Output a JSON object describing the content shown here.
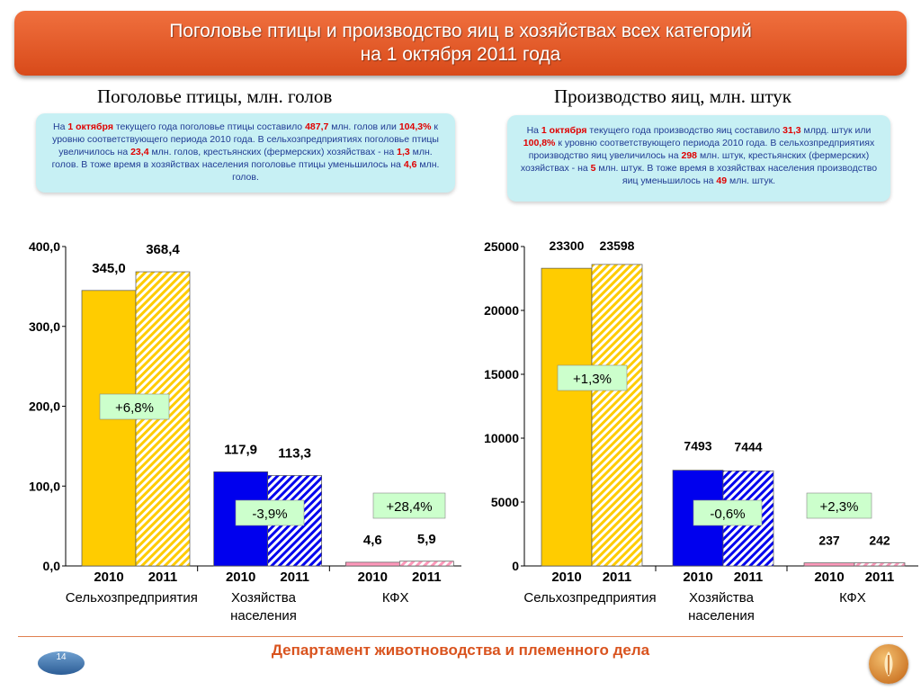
{
  "header": {
    "line1": "Поголовье птицы и производство яиц в хозяйствах всех категорий",
    "line2": "на 1 октября 2011 года"
  },
  "left_subtitle": "Поголовье птицы, млн. голов",
  "right_subtitle": "Производство яиц, млн. штук",
  "left_info": [
    {
      "t": "На ",
      "r": false
    },
    {
      "t": "1 октября",
      "r": true
    },
    {
      "t": " текущего года поголовье птицы составило ",
      "r": false
    },
    {
      "t": "487,7",
      "r": true
    },
    {
      "t": " млн. голов или ",
      "r": false
    },
    {
      "t": "104,3%",
      "r": true
    },
    {
      "t": " к уровню соответствующего периода 2010 года.  В сельхозпредприятиях поголовье птицы увеличилось на ",
      "r": false
    },
    {
      "t": "23,4",
      "r": true
    },
    {
      "t": " млн. голов, крестьянских (фермерских) хозяйствах -  на ",
      "r": false
    },
    {
      "t": "1,3",
      "r": true
    },
    {
      "t": " млн. голов.  В тоже время в хозяйствах населения поголовье птицы уменьшилось на ",
      "r": false
    },
    {
      "t": "4,6",
      "r": true
    },
    {
      "t": " млн. голов.",
      "r": false
    }
  ],
  "right_info": [
    {
      "t": "На ",
      "r": false
    },
    {
      "t": "1 октября",
      "r": true
    },
    {
      "t": " текущего года производство яиц составило ",
      "r": false
    },
    {
      "t": "31,3",
      "r": true
    },
    {
      "t": "  млрд. штук или ",
      "r": false
    },
    {
      "t": "100,8%",
      "r": true
    },
    {
      "t": " к уровню соответствующего периода 2010 года.  В сельхозпредприятиях производство яиц увеличилось на ",
      "r": false
    },
    {
      "t": "298",
      "r": true
    },
    {
      "t": "  млн. штук, крестьянских (фермерских) хозяйствах - на ",
      "r": false
    },
    {
      "t": "5",
      "r": true
    },
    {
      "t": " млн. штук. В тоже время в хозяйствах населения производство яиц уменьшилось на ",
      "r": false
    },
    {
      "t": "49",
      "r": true
    },
    {
      "t": "  млн. штук.",
      "r": false
    }
  ],
  "chart_data": [
    {
      "type": "bar",
      "categories": [
        "Сельхозпредприятия",
        "Хозяйства населения",
        "КФХ"
      ],
      "years": [
        "2010",
        "2011"
      ],
      "values_2010": [
        345.0,
        117.9,
        4.6
      ],
      "values_2011": [
        368.4,
        113.3,
        5.9
      ],
      "value_labels_2010": [
        "345,0",
        "117,9",
        "4,6"
      ],
      "value_labels_2011": [
        "368,4",
        "113,3",
        "5,9"
      ],
      "changes": [
        "+6,8%",
        "-3,9%",
        "+28,4%"
      ],
      "ylim": [
        0,
        400
      ],
      "yticks": [
        "0,0",
        "100,0",
        "200,0",
        "300,0",
        "400,0"
      ],
      "colors": [
        "#ffcc00",
        "#0000ee",
        "#ff99bb"
      ]
    },
    {
      "type": "bar",
      "categories": [
        "Сельхозпредприятия",
        "Хозяйства населения",
        "КФХ"
      ],
      "years": [
        "2010",
        "2011"
      ],
      "values_2010": [
        23300,
        7493,
        237
      ],
      "values_2011": [
        23598,
        7444,
        242
      ],
      "value_labels_2010": [
        "23300",
        "7493",
        "237"
      ],
      "value_labels_2011": [
        "23598",
        "7444",
        "242"
      ],
      "changes": [
        "+1,3%",
        "-0,6%",
        "+2,3%"
      ],
      "ylim": [
        0,
        25000
      ],
      "yticks": [
        "0",
        "5000",
        "10000",
        "15000",
        "20000",
        "25000"
      ],
      "colors": [
        "#ffcc00",
        "#0000ee",
        "#ff99bb"
      ]
    }
  ],
  "footer": "Департамент животноводства и племенного дела",
  "page_number": "14"
}
